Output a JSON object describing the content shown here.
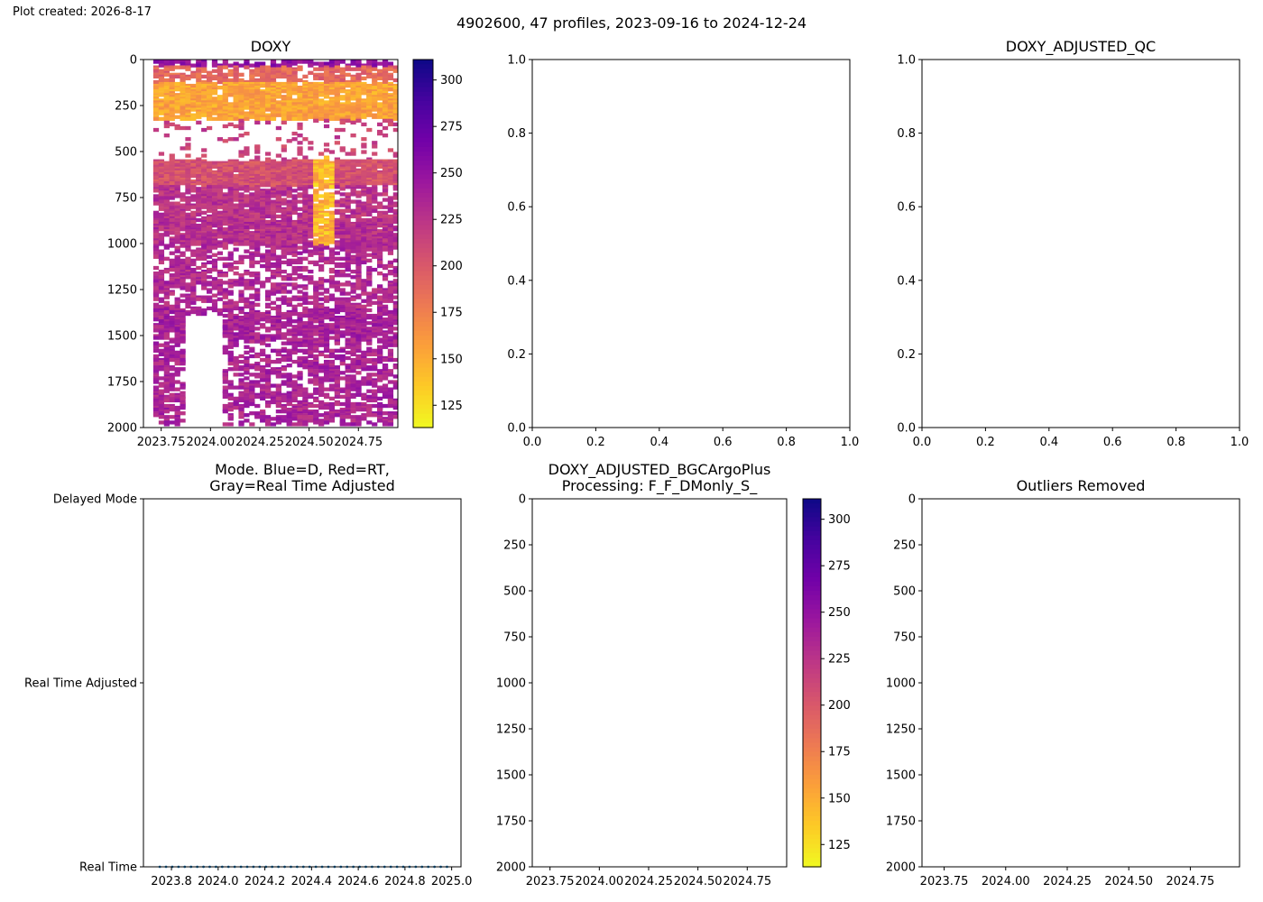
{
  "figure": {
    "created_note": "Plot created: 2026-8-17",
    "suptitle": "4902600, 47 profiles, 2023-09-16 to 2024-12-24"
  },
  "colormap": {
    "name": "plasma_r",
    "stops": [
      "#f0f921",
      "#fdca26",
      "#fb9f3a",
      "#ed7953",
      "#d8576b",
      "#bd3786",
      "#9c179e",
      "#7201a8",
      "#46039f",
      "#0d0887"
    ]
  },
  "chart_data": [
    {
      "id": "doxy",
      "type": "heatmap",
      "title": "DOXY",
      "xlim": [
        2023.66,
        2024.95
      ],
      "ylim": [
        2000,
        0
      ],
      "xticks": [
        2023.75,
        2024.0,
        2024.25,
        2024.5,
        2024.75
      ],
      "xticklabels": [
        "2023.75",
        "2024.00",
        "2024.25",
        "2024.50",
        "2024.75"
      ],
      "yticks": [
        0,
        250,
        500,
        750,
        1000,
        1250,
        1500,
        1750,
        2000
      ],
      "profiles": 47,
      "x_start": 2023.71,
      "x_end": 2024.98,
      "depth_bands": [
        {
          "from": 0,
          "to": 30,
          "value": 250,
          "coverage": 0.6
        },
        {
          "from": 30,
          "to": 120,
          "value": 190,
          "coverage": 0.55
        },
        {
          "from": 120,
          "to": 320,
          "value": 155,
          "coverage": 0.8
        },
        {
          "from": 320,
          "to": 540,
          "value": 215,
          "coverage": 0.12
        },
        {
          "from": 540,
          "to": 680,
          "value": 205,
          "coverage": 0.85
        },
        {
          "from": 680,
          "to": 860,
          "value": 225,
          "coverage": 0.6
        },
        {
          "from": 860,
          "to": 1000,
          "value": 228,
          "coverage": 0.85
        },
        {
          "from": 1000,
          "to": 1350,
          "value": 232,
          "coverage": 0.45
        },
        {
          "from": 1350,
          "to": 1520,
          "value": 238,
          "coverage": 0.65
        },
        {
          "from": 1520,
          "to": 1980,
          "value": 236,
          "coverage": 0.5
        }
      ],
      "gap": {
        "x_from": 2023.87,
        "x_to": 2024.05,
        "depth_from": 1380,
        "depth_to": 2000
      },
      "colorbar": {
        "vmin": 113,
        "vmax": 311,
        "ticks": [
          125,
          150,
          175,
          200,
          225,
          250,
          275,
          300
        ]
      }
    },
    {
      "id": "doxy-adjusted",
      "type": "scatter",
      "title": "",
      "xlim": [
        0.0,
        1.0
      ],
      "ylim": [
        0.0,
        1.0
      ],
      "xticks": [
        0.0,
        0.2,
        0.4,
        0.6,
        0.8,
        1.0
      ],
      "xticklabels": [
        "0.0",
        "0.2",
        "0.4",
        "0.6",
        "0.8",
        "1.0"
      ],
      "yticks": [
        0.0,
        0.2,
        0.4,
        0.6,
        0.8,
        1.0
      ],
      "yticklabels": [
        "0.0",
        "0.2",
        "0.4",
        "0.6",
        "0.8",
        "1.0"
      ],
      "series": []
    },
    {
      "id": "doxy-adjusted-qc",
      "type": "scatter",
      "title": "DOXY_ADJUSTED_QC",
      "xlim": [
        0.0,
        1.0
      ],
      "ylim": [
        0.0,
        1.0
      ],
      "xticks": [
        0.0,
        0.2,
        0.4,
        0.6,
        0.8,
        1.0
      ],
      "xticklabels": [
        "0.0",
        "0.2",
        "0.4",
        "0.6",
        "0.8",
        "1.0"
      ],
      "yticks": [
        0.0,
        0.2,
        0.4,
        0.6,
        0.8,
        1.0
      ],
      "yticklabels": [
        "0.0",
        "0.2",
        "0.4",
        "0.6",
        "0.8",
        "1.0"
      ],
      "series": []
    },
    {
      "id": "mode",
      "type": "scatter",
      "title": "Mode. Blue=D, Red=RT,\nGray=Real Time Adjusted",
      "xlim": [
        2023.68,
        2025.04
      ],
      "ylim": [
        0,
        2
      ],
      "xticks": [
        2023.8,
        2024.0,
        2024.2,
        2024.4,
        2024.6,
        2024.8,
        2025.0
      ],
      "xticklabels": [
        "2023.8",
        "2024.0",
        "2024.2",
        "2024.4",
        "2024.6",
        "2024.8",
        "2025.0"
      ],
      "yticks": [
        0,
        1,
        2
      ],
      "yticklabels": [
        "Real Time",
        "Real Time Adjusted",
        "Delayed Mode"
      ],
      "series": [
        {
          "color": "#1f77b4",
          "y": 0,
          "x_start": 2023.75,
          "x_end": 2024.98,
          "count": 47
        }
      ]
    },
    {
      "id": "doxy-adjusted-bgcargoplus",
      "type": "heatmap",
      "title": "DOXY_ADJUSTED_BGCArgoPlus\nProcessing: F_F_DMonly_S_",
      "xlim": [
        2023.66,
        2024.95
      ],
      "ylim": [
        2000,
        0
      ],
      "xticks": [
        2023.75,
        2024.0,
        2024.25,
        2024.5,
        2024.75
      ],
      "xticklabels": [
        "2023.75",
        "2024.00",
        "2024.25",
        "2024.50",
        "2024.75"
      ],
      "yticks": [
        0,
        250,
        500,
        750,
        1000,
        1250,
        1500,
        1750,
        2000
      ],
      "values": [],
      "colorbar": {
        "vmin": 113,
        "vmax": 311,
        "ticks": [
          125,
          150,
          175,
          200,
          225,
          250,
          275,
          300
        ]
      }
    },
    {
      "id": "outliers-removed",
      "type": "heatmap",
      "title": "Outliers Removed",
      "xlim": [
        2023.66,
        2024.95
      ],
      "ylim": [
        2000,
        0
      ],
      "xticks": [
        2023.75,
        2024.0,
        2024.25,
        2024.5,
        2024.75
      ],
      "xticklabels": [
        "2023.75",
        "2024.00",
        "2024.25",
        "2024.50",
        "2024.75"
      ],
      "yticks": [
        0,
        250,
        500,
        750,
        1000,
        1250,
        1500,
        1750,
        2000
      ],
      "values": []
    }
  ]
}
